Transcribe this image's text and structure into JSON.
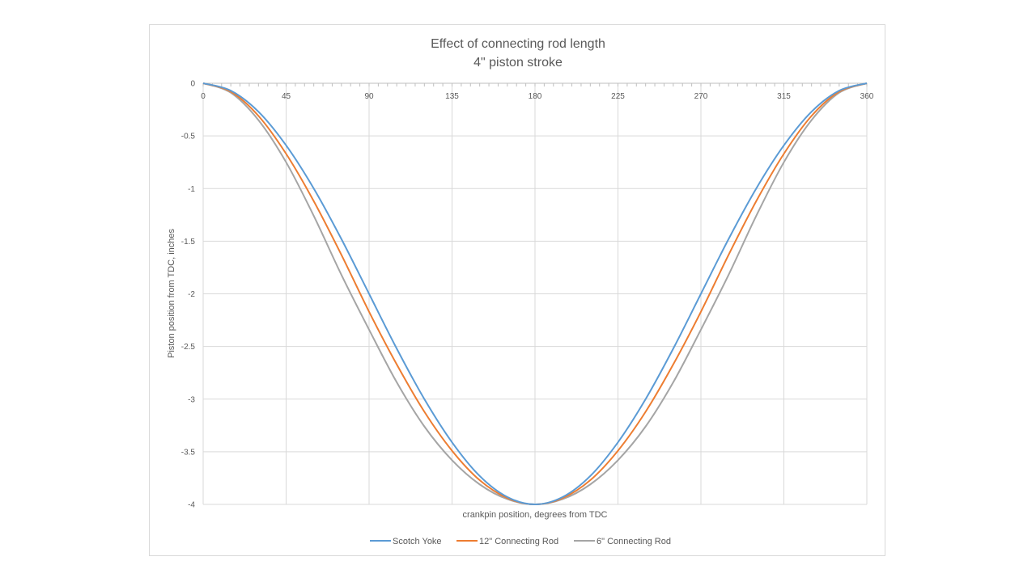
{
  "chart_data": {
    "type": "line",
    "title": "Effect of connecting rod length",
    "subtitle": "4\" piston stroke",
    "xlabel": "crankpin position, degrees from TDC",
    "ylabel": "Piston position from TDC, inches",
    "xlim": [
      0,
      360
    ],
    "ylim": [
      -4,
      0
    ],
    "x_ticks": [
      "0",
      "45",
      "90",
      "135",
      "180",
      "225",
      "270",
      "315",
      "360"
    ],
    "x_tick_values": [
      0,
      45,
      90,
      135,
      180,
      225,
      270,
      315,
      360
    ],
    "y_ticks": [
      "0",
      "-0.5",
      "-1",
      "-1.5",
      "-2",
      "-2.5",
      "-3",
      "-3.5",
      "-4"
    ],
    "y_tick_values": [
      0,
      -0.5,
      -1,
      -1.5,
      -2,
      -2.5,
      -3,
      -3.5,
      -4
    ],
    "grid": true,
    "legend_position": "bottom",
    "x": [
      0,
      15,
      30,
      45,
      60,
      75,
      90,
      105,
      120,
      135,
      150,
      165,
      180,
      195,
      210,
      225,
      240,
      255,
      270,
      285,
      300,
      315,
      330,
      345,
      360
    ],
    "series": [
      {
        "name": "Scotch Yoke",
        "color": "#5b9bd5",
        "values": [
          0,
          -0.07,
          -0.27,
          -0.59,
          -1.0,
          -1.48,
          -2.0,
          -2.52,
          -3.0,
          -3.41,
          -3.73,
          -3.93,
          -4.0,
          -3.93,
          -3.73,
          -3.41,
          -3.0,
          -2.52,
          -2.0,
          -1.48,
          -1.0,
          -0.59,
          -0.27,
          -0.07,
          0
        ]
      },
      {
        "name": "12\" Connecting Rod",
        "color": "#ed7d31",
        "values": [
          0,
          -0.08,
          -0.31,
          -0.67,
          -1.12,
          -1.63,
          -2.17,
          -2.67,
          -3.12,
          -3.49,
          -3.77,
          -3.94,
          -4.0,
          -3.94,
          -3.77,
          -3.49,
          -3.12,
          -2.67,
          -2.17,
          -1.63,
          -1.12,
          -0.67,
          -0.31,
          -0.08,
          0
        ]
      },
      {
        "name": "6\" Connecting Rod",
        "color": "#a5a5a5",
        "values": [
          0,
          -0.09,
          -0.35,
          -0.75,
          -1.26,
          -1.82,
          -2.34,
          -2.84,
          -3.26,
          -3.58,
          -3.81,
          -3.95,
          -4.0,
          -3.95,
          -3.81,
          -3.58,
          -3.26,
          -2.84,
          -2.34,
          -1.82,
          -1.26,
          -0.75,
          -0.35,
          -0.09,
          0
        ]
      }
    ]
  }
}
